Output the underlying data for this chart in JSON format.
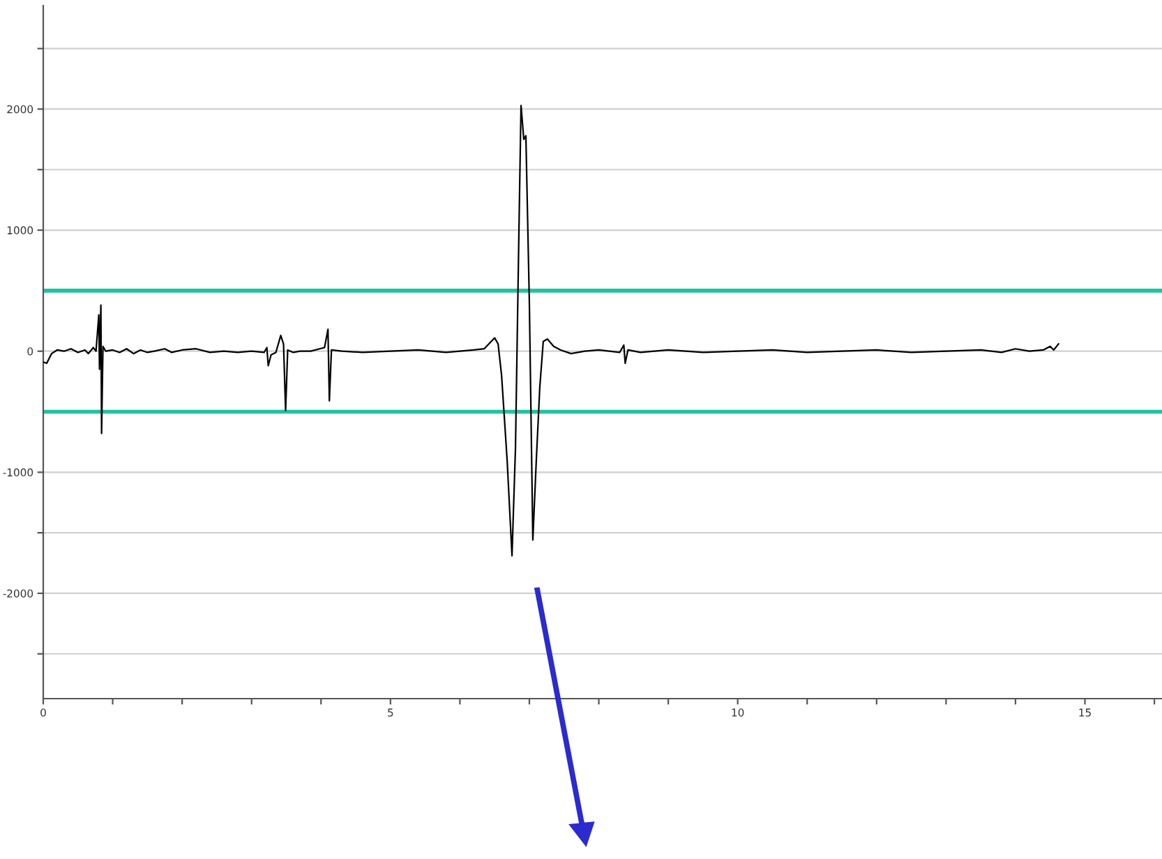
{
  "chart_data": {
    "type": "line",
    "x": [
      0.0,
      0.05,
      0.12,
      0.2,
      0.3,
      0.4,
      0.5,
      0.6,
      0.65,
      0.72,
      0.76,
      0.8,
      0.81,
      0.83,
      0.84,
      0.86,
      0.9,
      1.0,
      1.1,
      1.2,
      1.3,
      1.4,
      1.5,
      1.6,
      1.75,
      1.85,
      2.0,
      2.2,
      2.4,
      2.6,
      2.8,
      3.0,
      3.18,
      3.22,
      3.24,
      3.28,
      3.35,
      3.42,
      3.46,
      3.49,
      3.52,
      3.6,
      3.7,
      3.85,
      4.05,
      4.1,
      4.12,
      4.15,
      4.3,
      4.6,
      5.0,
      5.4,
      5.8,
      6.0,
      6.2,
      6.35,
      6.45,
      6.5,
      6.55,
      6.6,
      6.68,
      6.75,
      6.8,
      6.85,
      6.88,
      6.92,
      6.95,
      7.0,
      7.05,
      7.1,
      7.15,
      7.2,
      7.26,
      7.35,
      7.45,
      7.6,
      7.8,
      8.0,
      8.3,
      8.36,
      8.38,
      8.42,
      8.6,
      9.0,
      9.5,
      10.0,
      10.5,
      11.0,
      11.5,
      12.0,
      12.5,
      13.0,
      13.5,
      13.8,
      14.0,
      14.2,
      14.4,
      14.5,
      14.55,
      14.62
    ],
    "series": [
      {
        "color": "#000000",
        "values": [
          -90,
          -100,
          -20,
          10,
          0,
          20,
          -10,
          10,
          -20,
          30,
          0,
          300,
          -150,
          380,
          -680,
          40,
          0,
          10,
          -10,
          20,
          -20,
          10,
          -10,
          0,
          20,
          -10,
          10,
          20,
          -10,
          0,
          -10,
          0,
          -10,
          30,
          -120,
          -30,
          -10,
          130,
          60,
          -490,
          10,
          -10,
          0,
          0,
          30,
          180,
          -410,
          10,
          0,
          -10,
          0,
          10,
          -10,
          0,
          10,
          20,
          80,
          110,
          60,
          -200,
          -900,
          -1690,
          -800,
          1000,
          2030,
          1750,
          1780,
          400,
          -1560,
          -900,
          -300,
          80,
          100,
          40,
          10,
          -20,
          0,
          10,
          -10,
          50,
          -100,
          10,
          -10,
          10,
          -10,
          0,
          10,
          -10,
          0,
          10,
          -10,
          0,
          10,
          -10,
          20,
          0,
          10,
          40,
          10,
          60
        ]
      }
    ],
    "xlim": [
      0,
      16.15
    ],
    "ylim": [
      -2870,
      2855
    ],
    "xticks": [
      0,
      {
        "value": 1,
        "label": null
      },
      {
        "value": 2,
        "label": null
      },
      {
        "value": 3,
        "label": null
      },
      {
        "value": 4,
        "label": null
      },
      5,
      {
        "value": 6,
        "label": null
      },
      {
        "value": 7,
        "label": null
      },
      {
        "value": 8,
        "label": null
      },
      {
        "value": 9,
        "label": null
      },
      10,
      {
        "value": 11,
        "label": null
      },
      {
        "value": 12,
        "label": null
      },
      {
        "value": 13,
        "label": null
      },
      {
        "value": 14,
        "label": null
      },
      15,
      {
        "value": 16,
        "label": null
      }
    ],
    "yticks": [
      {
        "value": -2500,
        "label": null
      },
      -2000,
      {
        "value": -1500,
        "label": null
      },
      -1000,
      0,
      1000,
      {
        "value": 1500,
        "label": null
      },
      2000,
      {
        "value": 2500,
        "label": null
      }
    ],
    "grid": "y",
    "marker": "none",
    "line_style": "solid",
    "ref_lines": [
      {
        "axis": "y",
        "value": 500,
        "color": "#1fc3a0"
      },
      {
        "axis": "y",
        "value": -500,
        "color": "#1fc3a0"
      }
    ]
  }
}
